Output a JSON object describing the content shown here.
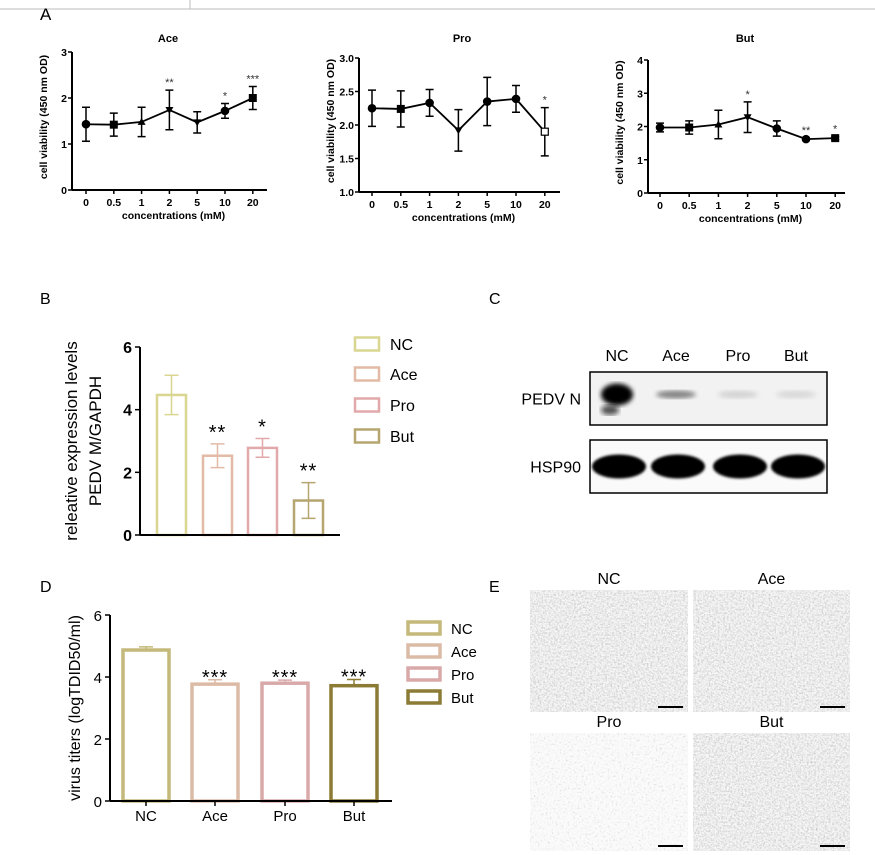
{
  "panel_labels": {
    "a": "A",
    "b": "B",
    "c": "C",
    "d": "D",
    "e": "E"
  },
  "chart_data": [
    {
      "id": "A-ace",
      "type": "line",
      "title": "Ace",
      "xlabel": "concentrations (mM)",
      "ylabel": "cell viability (450 nm OD)",
      "categories": [
        "0",
        "0.5",
        "1",
        "2",
        "5",
        "10",
        "20"
      ],
      "values": [
        1.43,
        1.42,
        1.48,
        1.74,
        1.47,
        1.72,
        2.0
      ],
      "errors": [
        0.37,
        0.25,
        0.32,
        0.43,
        0.23,
        0.16,
        0.25
      ],
      "significance": [
        "",
        "",
        "",
        "**",
        "",
        "*",
        "***"
      ],
      "ylim": [
        0,
        3
      ],
      "yticks": [
        "0",
        "1",
        "2",
        "3"
      ],
      "grid": false
    },
    {
      "id": "A-pro",
      "type": "line",
      "title": "Pro",
      "xlabel": "concentrations (mM)",
      "ylabel": "cell viability (450 nm OD)",
      "categories": [
        "0",
        "0.5",
        "1",
        "2",
        "5",
        "10",
        "20"
      ],
      "values": [
        2.25,
        2.24,
        2.33,
        1.92,
        2.35,
        2.39,
        1.9
      ],
      "errors": [
        0.27,
        0.27,
        0.2,
        0.31,
        0.36,
        0.2,
        0.36
      ],
      "significance": [
        "",
        "",
        "",
        "",
        "",
        "",
        "*"
      ],
      "ylim": [
        1,
        3
      ],
      "yticks": [
        "1.0",
        "1.5",
        "2.0",
        "2.5",
        "3.0"
      ],
      "grid": false
    },
    {
      "id": "A-but",
      "type": "line",
      "title": "But",
      "xlabel": "concentrations (mM)",
      "ylabel": "cell viability (450 nm OD)",
      "categories": [
        "0",
        "0.5",
        "1",
        "2",
        "5",
        "10",
        "20"
      ],
      "values": [
        1.97,
        1.97,
        2.06,
        2.28,
        1.94,
        1.62,
        1.65
      ],
      "errors": [
        0.13,
        0.2,
        0.43,
        0.46,
        0.23,
        0.03,
        0.05
      ],
      "significance": [
        "",
        "",
        "",
        "*",
        "",
        "**",
        "*"
      ],
      "ylim": [
        0,
        4
      ],
      "yticks": [
        "0",
        "1",
        "2",
        "3",
        "4"
      ],
      "grid": false
    },
    {
      "id": "B",
      "type": "bar",
      "title": "",
      "xlabel": "",
      "ylabel": [
        "releative expression levels",
        "PEDV M/GAPDH"
      ],
      "categories": [
        "NC",
        "Ace",
        "Pro",
        "But"
      ],
      "values": [
        4.47,
        2.53,
        2.78,
        1.1
      ],
      "errors": [
        0.63,
        0.38,
        0.3,
        0.57
      ],
      "significance": [
        "",
        "**",
        "*",
        "**"
      ],
      "colors": [
        "#d8d690",
        "#e2baa6",
        "#e2a9aa",
        "#b5a56f"
      ],
      "ylim": [
        0,
        6
      ],
      "yticks": [
        "0",
        "2",
        "4",
        "6"
      ],
      "show_xticklabels": false,
      "legend": "right",
      "grid": false
    },
    {
      "id": "D",
      "type": "bar",
      "title": "",
      "xlabel": "",
      "ylabel": "virus titers (logTDID50/ml)",
      "categories": [
        "NC",
        "Ace",
        "Pro",
        "But"
      ],
      "values": [
        4.87,
        3.77,
        3.8,
        3.72
      ],
      "errors": [
        0.1,
        0.14,
        0.1,
        0.2
      ],
      "significance": [
        "",
        "***",
        "***",
        "***"
      ],
      "colors": [
        "#c4b97a",
        "#dcbba6",
        "#d9a9aa",
        "#8c7b35"
      ],
      "ylim": [
        0,
        6
      ],
      "yticks": [
        "0",
        "2",
        "4",
        "6"
      ],
      "show_xticklabels": true,
      "legend": "right",
      "grid": false
    }
  ],
  "blot": {
    "lanes": [
      "NC",
      "Ace",
      "Pro",
      "But"
    ],
    "rows": [
      {
        "label": "PEDV N",
        "intensity": [
          1.0,
          0.45,
          0.12,
          0.1
        ]
      },
      {
        "label": "HSP90",
        "intensity": [
          1.0,
          1.0,
          1.0,
          1.0
        ]
      }
    ]
  },
  "micrographs": {
    "labels": [
      "NC",
      "Ace",
      "Pro",
      "But"
    ]
  }
}
